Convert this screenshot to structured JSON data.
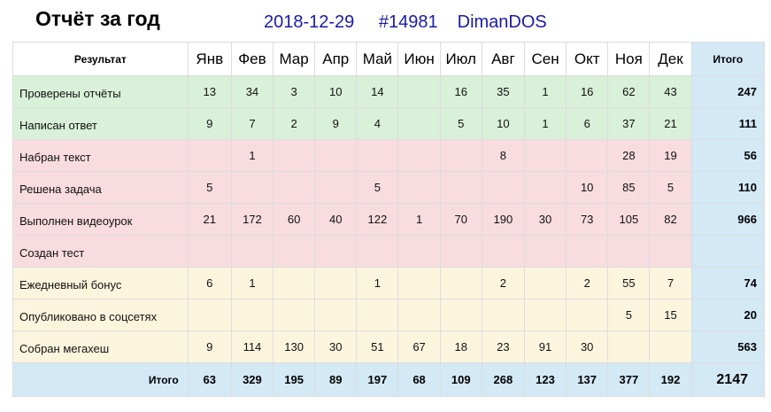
{
  "page": {
    "title": "Отчёт за год",
    "date": "2018-12-29",
    "id": "#14981",
    "user": "DimanDOS"
  },
  "table": {
    "header_result": "Результат",
    "header_total": "Итого",
    "months": [
      "Янв",
      "Фев",
      "Мар",
      "Апр",
      "Май",
      "Июн",
      "Июл",
      "Авг",
      "Сен",
      "Окт",
      "Ноя",
      "Дек"
    ],
    "rows": [
      {
        "label": "Проверены отчёты",
        "group": "green",
        "values": [
          "13",
          "34",
          "3",
          "10",
          "14",
          "",
          "16",
          "35",
          "1",
          "16",
          "62",
          "43"
        ],
        "total": "247"
      },
      {
        "label": "Написан ответ",
        "group": "green",
        "values": [
          "9",
          "7",
          "2",
          "9",
          "4",
          "",
          "5",
          "10",
          "1",
          "6",
          "37",
          "21"
        ],
        "total": "111"
      },
      {
        "label": "Набран текст",
        "group": "pink",
        "values": [
          "",
          "1",
          "",
          "",
          "",
          "",
          "",
          "8",
          "",
          "",
          "28",
          "19"
        ],
        "total": "56"
      },
      {
        "label": "Решена задача",
        "group": "pink",
        "values": [
          "5",
          "",
          "",
          "",
          "5",
          "",
          "",
          "",
          "",
          "10",
          "85",
          "5"
        ],
        "total": "110"
      },
      {
        "label": "Выполнен видеоурок",
        "group": "pink",
        "values": [
          "21",
          "172",
          "60",
          "40",
          "122",
          "1",
          "70",
          "190",
          "30",
          "73",
          "105",
          "82"
        ],
        "total": "966"
      },
      {
        "label": "Создан тест",
        "group": "pink",
        "values": [
          "",
          "",
          "",
          "",
          "",
          "",
          "",
          "",
          "",
          "",
          "",
          ""
        ],
        "total": ""
      },
      {
        "label": "Ежедневный бонус",
        "group": "yellow",
        "values": [
          "6",
          "1",
          "",
          "",
          "1",
          "",
          "",
          "2",
          "",
          "2",
          "55",
          "7"
        ],
        "total": "74"
      },
      {
        "label": "Опубликовано в соцсетях",
        "group": "yellow",
        "values": [
          "",
          "",
          "",
          "",
          "",
          "",
          "",
          "",
          "",
          "",
          "5",
          "15"
        ],
        "total": "20"
      },
      {
        "label": "Собран мегахеш",
        "group": "yellow",
        "values": [
          "9",
          "114",
          "130",
          "30",
          "51",
          "67",
          "18",
          "23",
          "91",
          "30",
          "",
          ""
        ],
        "total": "563"
      }
    ],
    "footer_label": "Итого",
    "footer_values": [
      "63",
      "329",
      "195",
      "89",
      "197",
      "68",
      "109",
      "268",
      "123",
      "137",
      "377",
      "192"
    ],
    "grand_total": "2147"
  }
}
